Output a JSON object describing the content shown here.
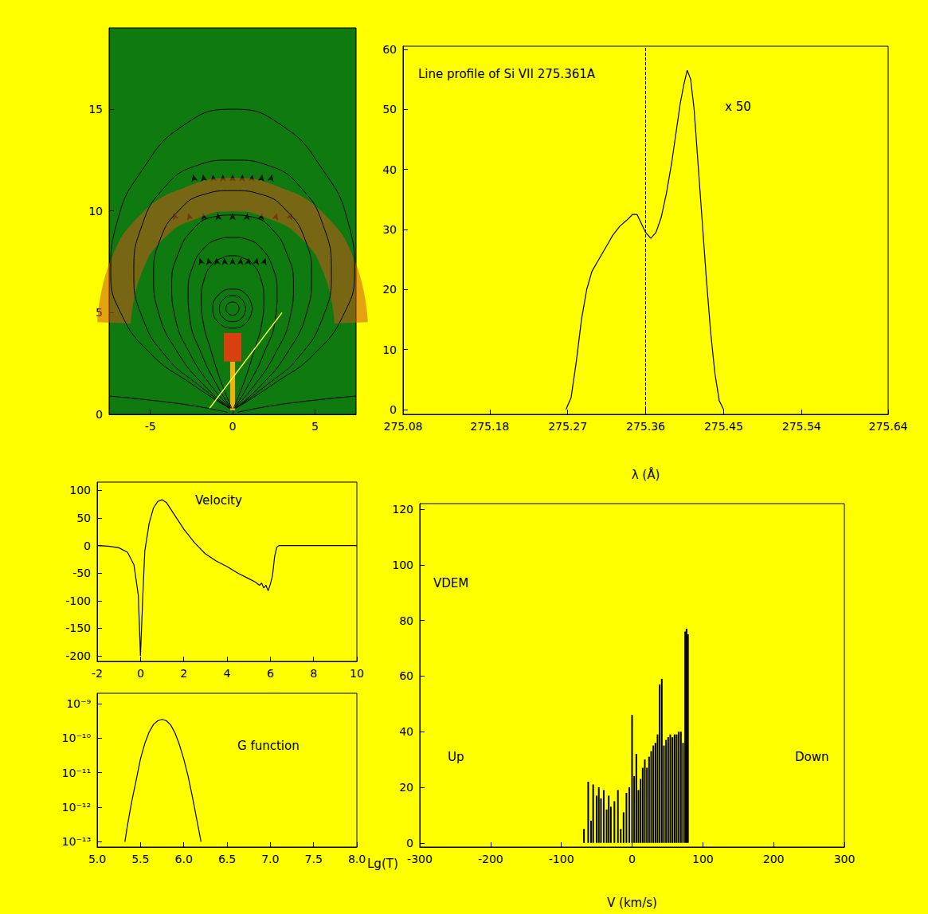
{
  "chart_data": [
    {
      "type": "field_map",
      "color": "#0f7a0f",
      "xlim": [
        -7.5,
        7.5
      ],
      "xticks": [
        -5,
        0,
        5
      ],
      "ylim": [
        0,
        19
      ],
      "yticks": [
        0,
        5,
        10,
        15
      ],
      "shell": [
        [
          -7.2,
          4.5
        ],
        [
          -6.5,
          7.2
        ],
        [
          -4.8,
          9.3
        ],
        [
          -2.5,
          10.4
        ],
        [
          0,
          10.8
        ],
        [
          2.5,
          10.4
        ],
        [
          4.8,
          9.3
        ],
        [
          6.5,
          7.2
        ],
        [
          7.2,
          4.5
        ]
      ],
      "core": [
        [
          0,
          2.6
        ],
        [
          0,
          4.0
        ]
      ],
      "jet": [
        [
          0,
          0.2
        ],
        [
          0,
          2.6
        ]
      ],
      "field_lines": [
        [
          [
            0.2,
            0.3
          ],
          [
            2.5,
            1.5
          ],
          [
            5,
            3
          ],
          [
            6.8,
            5
          ],
          [
            7.4,
            7
          ],
          [
            7,
            9.5
          ],
          [
            5.5,
            12
          ],
          [
            3,
            14.2
          ],
          [
            0,
            15
          ],
          [
            -3,
            14.2
          ],
          [
            -5.5,
            12
          ],
          [
            -7,
            9.5
          ],
          [
            -7.4,
            7
          ],
          [
            -6.8,
            5
          ],
          [
            -5,
            3
          ],
          [
            -2.5,
            1.5
          ],
          [
            -0.2,
            0.3
          ]
        ],
        [
          [
            0.2,
            0.3
          ],
          [
            2,
            1.4
          ],
          [
            4,
            2.8
          ],
          [
            5.5,
            4.8
          ],
          [
            6,
            7
          ],
          [
            5.5,
            9.3
          ],
          [
            4.2,
            11.1
          ],
          [
            2.3,
            12.2
          ],
          [
            0,
            12.5
          ],
          [
            -2.3,
            12.2
          ],
          [
            -4.2,
            11.1
          ],
          [
            -5.5,
            9.3
          ],
          [
            -6,
            7
          ],
          [
            -5.5,
            4.8
          ],
          [
            -4,
            2.8
          ],
          [
            -2,
            1.4
          ],
          [
            -0.2,
            0.3
          ]
        ],
        [
          [
            0.15,
            0.3
          ],
          [
            1.7,
            1.4
          ],
          [
            3.3,
            3
          ],
          [
            4.5,
            5
          ],
          [
            4.8,
            6.8
          ],
          [
            4.4,
            8.6
          ],
          [
            3.3,
            10
          ],
          [
            1.8,
            10.8
          ],
          [
            0,
            11
          ],
          [
            -1.8,
            10.8
          ],
          [
            -3.3,
            10
          ],
          [
            -4.4,
            8.6
          ],
          [
            -4.8,
            6.8
          ],
          [
            -4.5,
            5
          ],
          [
            -3.3,
            3
          ],
          [
            -1.7,
            1.4
          ],
          [
            -0.15,
            0.3
          ]
        ],
        [
          [
            0.1,
            0.3
          ],
          [
            1.3,
            1.4
          ],
          [
            2.6,
            3
          ],
          [
            3.5,
            4.8
          ],
          [
            3.7,
            6.4
          ],
          [
            3.3,
            7.9
          ],
          [
            2.4,
            9.1
          ],
          [
            1.2,
            9.7
          ],
          [
            0,
            9.8
          ],
          [
            -1.2,
            9.7
          ],
          [
            -2.4,
            9.1
          ],
          [
            -3.3,
            7.9
          ],
          [
            -3.7,
            6.4
          ],
          [
            -3.5,
            4.8
          ],
          [
            -2.6,
            3
          ],
          [
            -1.3,
            1.4
          ],
          [
            -0.1,
            0.3
          ]
        ],
        [
          [
            0.1,
            0.3
          ],
          [
            1,
            1.5
          ],
          [
            1.9,
            3
          ],
          [
            2.6,
            4.7
          ],
          [
            2.7,
            6
          ],
          [
            2.4,
            7.3
          ],
          [
            1.7,
            8.2
          ],
          [
            0.9,
            8.6
          ],
          [
            0,
            8.7
          ],
          [
            -0.9,
            8.6
          ],
          [
            -1.7,
            8.2
          ],
          [
            -2.4,
            7.3
          ],
          [
            -2.7,
            6
          ],
          [
            -2.6,
            4.7
          ],
          [
            -1.9,
            3
          ],
          [
            -1,
            1.5
          ],
          [
            -0.1,
            0.3
          ]
        ],
        [
          [
            0.05,
            0.3
          ],
          [
            0.7,
            1.6
          ],
          [
            1.3,
            3.1
          ],
          [
            1.8,
            4.6
          ],
          [
            1.9,
            5.6
          ],
          [
            1.7,
            6.7
          ],
          [
            1.2,
            7.4
          ],
          [
            0.6,
            7.7
          ],
          [
            0,
            7.8
          ],
          [
            -0.6,
            7.7
          ],
          [
            -1.2,
            7.4
          ],
          [
            -1.7,
            6.7
          ],
          [
            -1.9,
            5.6
          ],
          [
            -1.8,
            4.6
          ],
          [
            -1.3,
            3.1
          ],
          [
            -0.7,
            1.6
          ],
          [
            -0.05,
            0.3
          ]
        ],
        [
          [
            1.2,
            5.2
          ],
          [
            0.85,
            5.88
          ],
          [
            0,
            6.16
          ],
          [
            -0.85,
            5.88
          ],
          [
            -1.2,
            5.2
          ],
          [
            -0.85,
            4.52
          ],
          [
            0,
            4.24
          ],
          [
            0.85,
            4.52
          ],
          [
            1.2,
            5.2
          ]
        ],
        [
          [
            0.8,
            5.2
          ],
          [
            0.57,
            5.65
          ],
          [
            0,
            5.84
          ],
          [
            -0.57,
            5.65
          ],
          [
            -0.8,
            5.2
          ],
          [
            -0.57,
            4.75
          ],
          [
            0,
            4.56
          ],
          [
            0.57,
            4.75
          ],
          [
            0.8,
            5.2
          ]
        ],
        [
          [
            0.4,
            5.2
          ],
          [
            0.28,
            5.43
          ],
          [
            0,
            5.52
          ],
          [
            -0.28,
            5.43
          ],
          [
            -0.4,
            5.2
          ],
          [
            -0.28,
            4.97
          ],
          [
            0,
            4.88
          ],
          [
            0.28,
            4.97
          ],
          [
            0.4,
            5.2
          ]
        ],
        [
          [
            -0.3,
            0.1
          ],
          [
            -3,
            0.5
          ],
          [
            -7.5,
            0.9
          ]
        ],
        [
          [
            0.3,
            0.1
          ],
          [
            3,
            0.5
          ],
          [
            7.5,
            0.9
          ]
        ]
      ],
      "arrows": [
        [
          -2.4,
          11.8
        ],
        [
          -1.8,
          11.8
        ],
        [
          -1.2,
          11.8
        ],
        [
          -0.6,
          11.8
        ],
        [
          0,
          11.8
        ],
        [
          0.6,
          11.8
        ],
        [
          1.2,
          11.8
        ],
        [
          1.8,
          11.8
        ],
        [
          2.4,
          11.8
        ],
        [
          -3.6,
          9.9
        ],
        [
          -2.7,
          9.9
        ],
        [
          -1.8,
          9.9
        ],
        [
          -0.9,
          9.9
        ],
        [
          0,
          9.9
        ],
        [
          0.9,
          9.9
        ],
        [
          1.8,
          9.9
        ],
        [
          2.7,
          9.9
        ],
        [
          3.6,
          9.9
        ],
        [
          -2,
          7.7
        ],
        [
          -1.5,
          7.7
        ],
        [
          -1,
          7.7
        ],
        [
          -0.5,
          7.7
        ],
        [
          0,
          7.7
        ],
        [
          0.5,
          7.7
        ],
        [
          1,
          7.7
        ],
        [
          1.5,
          7.7
        ],
        [
          2,
          7.7
        ],
        [
          -0.3,
          3.5
        ],
        [
          0,
          3.5
        ],
        [
          0.3,
          3.5
        ]
      ],
      "line_of_sight": [
        [
          -1.4,
          0.3
        ],
        [
          3,
          5
        ]
      ]
    },
    {
      "type": "line",
      "title": "Line profile of Si VII 275.361A",
      "annotations": [
        "x 50"
      ],
      "x_label": "λ (Å)",
      "color": "#000000",
      "rest_wavelength": 275.361,
      "xlim": [
        275.08,
        275.64
      ],
      "xticks": [
        275.08,
        275.18,
        275.27,
        275.36,
        275.45,
        275.54,
        275.64
      ],
      "ylim": [
        -0.8,
        60.5
      ],
      "yticks": [
        0,
        10,
        20,
        30,
        40,
        50,
        60
      ],
      "x": [
        275.268,
        275.274,
        275.28,
        275.286,
        275.292,
        275.298,
        275.306,
        275.314,
        275.322,
        275.33,
        275.338,
        275.345,
        275.35,
        275.355,
        275.36,
        275.366,
        275.372,
        275.378,
        275.384,
        275.39,
        275.395,
        275.4,
        275.404,
        275.408,
        275.412,
        275.416,
        275.42,
        275.425,
        275.43,
        275.435,
        275.44,
        275.445,
        275.45
      ],
      "values": [
        0,
        2,
        8,
        15,
        20,
        23,
        25,
        27,
        29,
        30.5,
        31.5,
        32.5,
        32.5,
        31,
        29.5,
        28.5,
        29.5,
        32,
        36,
        41,
        46,
        51,
        54,
        56.5,
        55,
        50,
        42,
        32,
        22,
        13,
        6,
        1.5,
        0
      ]
    },
    {
      "type": "line",
      "title": "Velocity",
      "color": "#000000",
      "xlim": [
        -2,
        10
      ],
      "xticks": [
        -2,
        0,
        2,
        4,
        6,
        8,
        10
      ],
      "ylim": [
        -210,
        115
      ],
      "yticks": [
        -200,
        -150,
        -100,
        -50,
        0,
        50,
        100
      ],
      "x": [
        -2,
        -1.5,
        -1,
        -0.6,
        -0.3,
        -0.1,
        0,
        0.1,
        0.2,
        0.4,
        0.6,
        0.8,
        1.0,
        1.2,
        1.5,
        2,
        2.5,
        3,
        3.5,
        4,
        4.5,
        5,
        5.3,
        5.5,
        5.6,
        5.7,
        5.8,
        5.9,
        6.0,
        6.1,
        6.2,
        6.3,
        6.4,
        10
      ],
      "values": [
        0,
        -1,
        -4,
        -12,
        -35,
        -90,
        -200,
        -100,
        -10,
        40,
        68,
        80,
        83,
        78,
        60,
        30,
        5,
        -15,
        -28,
        -38,
        -50,
        -60,
        -66,
        -72,
        -68,
        -77,
        -72,
        -82,
        -70,
        -55,
        -20,
        -3,
        0,
        0
      ]
    },
    {
      "type": "line",
      "title": "G function",
      "x_label": "Lg(T)",
      "color": "#000000",
      "log": "y",
      "xlim": [
        5,
        8
      ],
      "xticks": [
        {
          "value": 5,
          "label": "5.0"
        },
        5.5,
        {
          "value": 6,
          "label": "6.0"
        },
        6.5,
        {
          "value": 7,
          "label": "7.0"
        },
        7.5,
        {
          "value": 8,
          "label": "8.0"
        }
      ],
      "ylim": [
        7e-14,
        2e-09
      ],
      "yticks": [
        {
          "value": 1e-13,
          "label": "10⁻¹³"
        },
        {
          "value": 1e-12,
          "label": "10⁻¹²"
        },
        {
          "value": 1e-11,
          "label": "10⁻¹¹"
        },
        {
          "value": 1e-10,
          "label": "10⁻¹⁰"
        },
        {
          "value": 1e-09,
          "label": "10⁻⁹"
        }
      ],
      "x": [
        5.32,
        5.35,
        5.4,
        5.45,
        5.5,
        5.55,
        5.6,
        5.65,
        5.7,
        5.75,
        5.8,
        5.85,
        5.9,
        5.95,
        6.0,
        6.05,
        6.1,
        6.15,
        6.2
      ],
      "values": [
        1e-13,
        3e-13,
        1.5e-12,
        6e-12,
        2.5e-11,
        7e-11,
        1.5e-10,
        2.5e-10,
        3.2e-10,
        3.5e-10,
        3.2e-10,
        2.4e-10,
        1.4e-10,
        6.5e-11,
        2.5e-11,
        8e-12,
        2e-12,
        4.5e-13,
        1e-13
      ]
    },
    {
      "type": "bar",
      "title": "VDEM",
      "annotations": [
        "Up",
        "Down"
      ],
      "x_label": "V (km/s)",
      "color": "#000000",
      "xlim": [
        -300,
        300
      ],
      "xticks": [
        -300,
        -200,
        -100,
        0,
        100,
        200,
        300
      ],
      "ylim": [
        -1.5,
        122
      ],
      "yticks": [
        0,
        20,
        40,
        60,
        80,
        100,
        120
      ],
      "x": [
        -68,
        -62,
        -58,
        -55,
        -50,
        -47,
        -44,
        -40,
        -36,
        -33,
        -30,
        -25,
        -20,
        -16,
        -12,
        -8,
        -4,
        0,
        3,
        6,
        9,
        12,
        15,
        18,
        21,
        24,
        27,
        30,
        33,
        36,
        39,
        42,
        45,
        48,
        51,
        54,
        57,
        60,
        63,
        66,
        69,
        72,
        75,
        77,
        79
      ],
      "values": [
        5,
        22,
        8,
        21,
        17,
        20,
        16,
        19,
        12,
        17,
        13,
        15,
        19,
        5,
        11,
        18,
        20,
        46,
        24,
        32,
        19,
        23,
        27,
        30,
        27,
        31,
        33,
        35,
        36,
        39,
        57,
        59,
        35,
        37,
        38,
        39,
        38,
        39,
        39,
        40,
        40,
        36,
        76,
        77,
        75
      ]
    }
  ]
}
